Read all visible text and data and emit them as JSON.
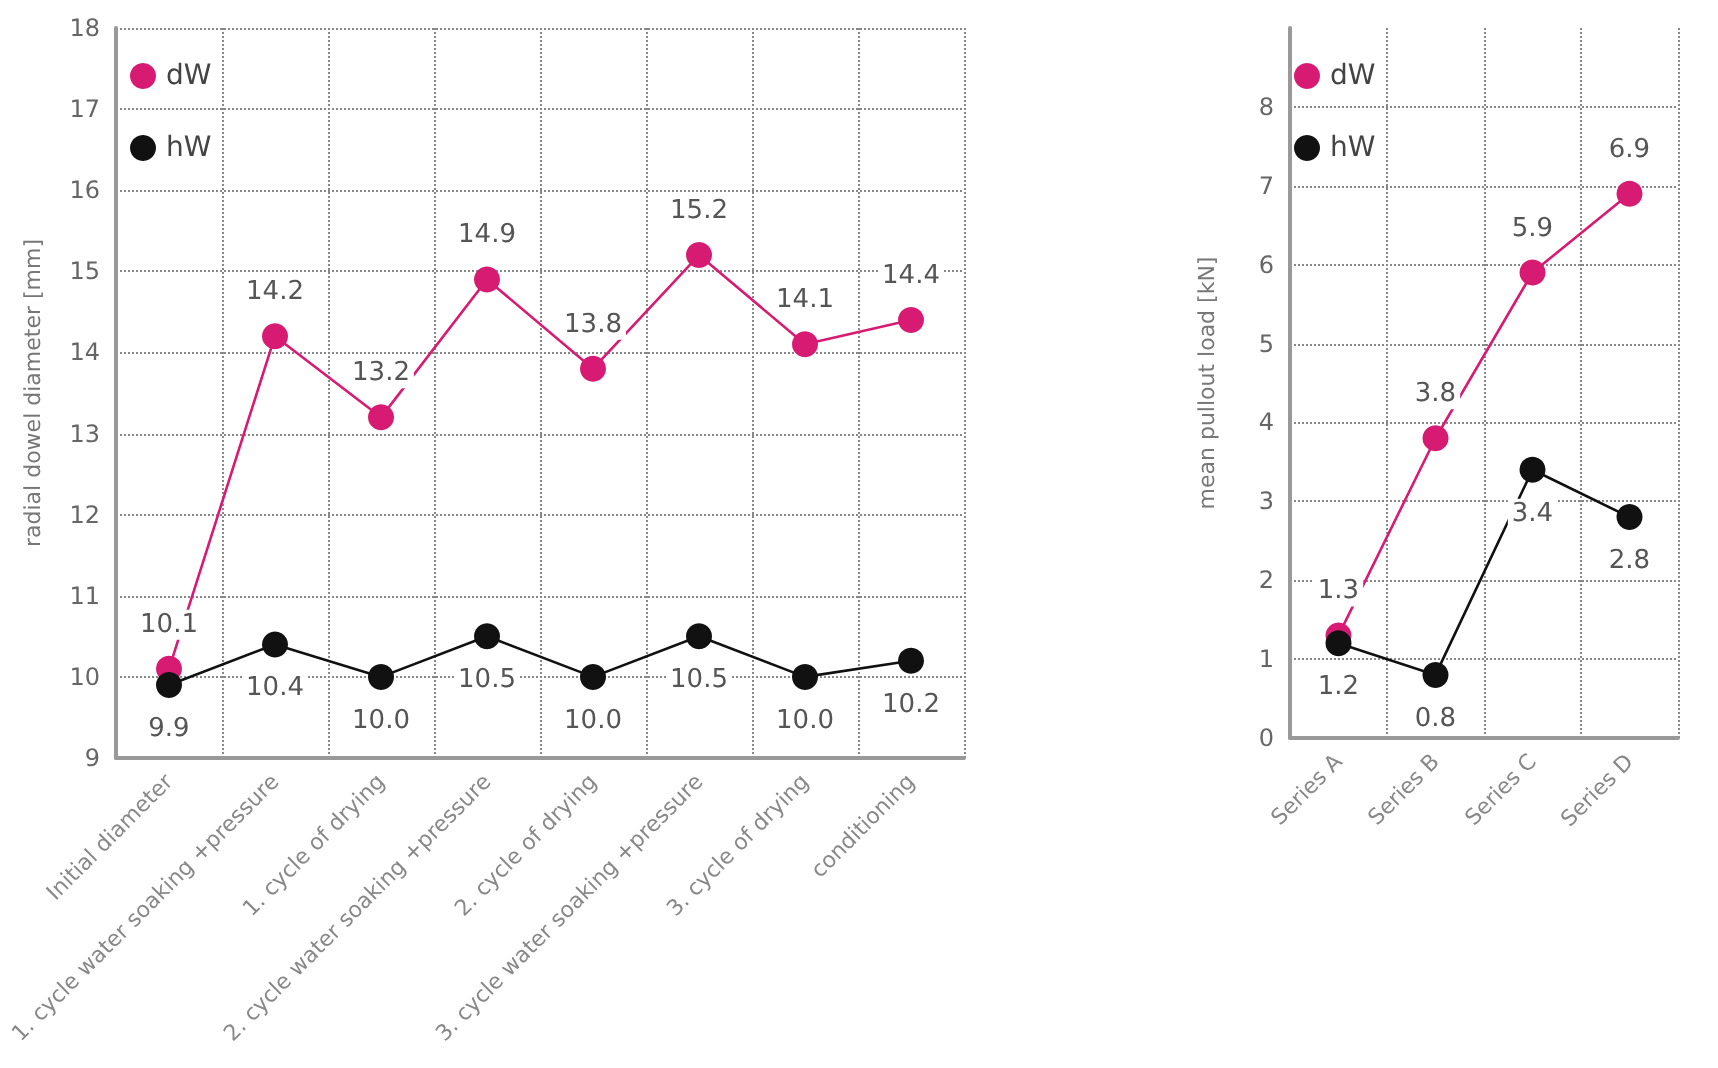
{
  "chart_data": [
    {
      "type": "line",
      "ylabel": "radial dowel diameter [mm]",
      "categories": [
        "Initial diameter",
        "1. cycle water soaking +pressure",
        "1. cycle of drying",
        "2. cycle water soaking +pressure",
        "2. cycle of drying",
        "3. cycle water soaking +pressure",
        "3. cycle of drying",
        "conditioning"
      ],
      "series": [
        {
          "name": "dW",
          "color": "#d81b72",
          "values": [
            10.1,
            14.2,
            13.2,
            14.9,
            13.8,
            15.2,
            14.1,
            14.4
          ],
          "value_labels": [
            "10.1",
            "14.2",
            "13.2",
            "14.9",
            "13.8",
            "15.2",
            "14.1",
            "14.4"
          ]
        },
        {
          "name": "hW",
          "color": "#111111",
          "values": [
            9.9,
            10.4,
            10.0,
            10.5,
            10.0,
            10.5,
            10.0,
            10.2
          ],
          "value_labels": [
            "9.9",
            "10.4",
            "10.0",
            "10.5",
            "10.0",
            "10.5",
            "10.0",
            "10.2"
          ]
        }
      ],
      "ylim": [
        9,
        18
      ],
      "yticks": [
        9,
        10,
        11,
        12,
        13,
        14,
        15,
        16,
        17,
        18
      ],
      "grid": true,
      "legend": "top left",
      "marker": "circle",
      "line_style": "solid"
    },
    {
      "type": "line",
      "ylabel": "mean pullout load [kN]",
      "categories": [
        "Series A",
        "Series B",
        "Series C",
        "Series D"
      ],
      "series": [
        {
          "name": "dW",
          "color": "#d81b72",
          "values": [
            1.3,
            3.8,
            5.9,
            6.9
          ],
          "value_labels": [
            "1.3",
            "3.8",
            "5.9",
            "6.9"
          ]
        },
        {
          "name": "hW",
          "color": "#111111",
          "values": [
            1.2,
            0.8,
            3.4,
            2.8
          ],
          "value_labels": [
            "1.2",
            "0.8",
            "3.4",
            "2.8"
          ]
        }
      ],
      "ylim": [
        0,
        9
      ],
      "yticks": [
        0,
        1,
        2,
        3,
        4,
        5,
        6,
        7,
        8
      ],
      "grid": true,
      "legend": "top left",
      "marker": "circle",
      "line_style": "solid"
    }
  ]
}
